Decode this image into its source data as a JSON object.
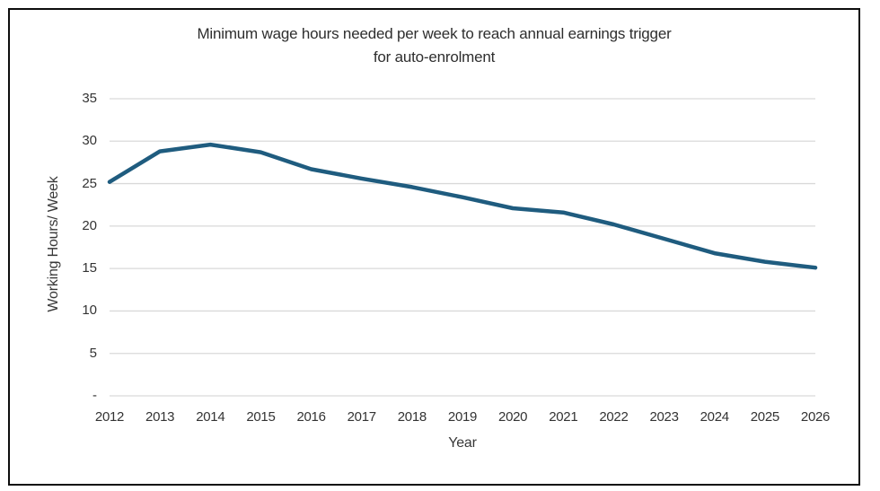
{
  "chart": {
    "title_lines": [
      "Minimum wage hours needed per week to reach annual earnings trigger",
      "for auto-enrolment"
    ],
    "xlabel": "Year",
    "ylabel": "Working Hours/ Week",
    "colors": {
      "line": "#1f5c7f",
      "gridline": "#d9d9d9",
      "axis_text": "#333333",
      "border": "#0d0d0d"
    }
  },
  "chart_data": {
    "type": "line",
    "title": "Minimum wage hours needed per week to reach annual earnings trigger for auto-enrolment",
    "xlabel": "Year",
    "ylabel": "Working Hours/ Week",
    "x": [
      2012,
      2013,
      2014,
      2015,
      2016,
      2017,
      2018,
      2019,
      2020,
      2021,
      2022,
      2023,
      2024,
      2025,
      2026
    ],
    "values": [
      25.2,
      28.8,
      29.6,
      28.7,
      26.7,
      25.6,
      24.6,
      23.4,
      22.1,
      21.6,
      20.2,
      18.5,
      16.8,
      15.8,
      15.1
    ],
    "ylim": [
      0,
      35
    ],
    "ytick_step": 5,
    "ytick_labels": [
      "-",
      "5",
      "10",
      "15",
      "20",
      "25",
      "30",
      "35"
    ],
    "grid": true,
    "legend": false,
    "line_color": "#1f5c7f"
  }
}
